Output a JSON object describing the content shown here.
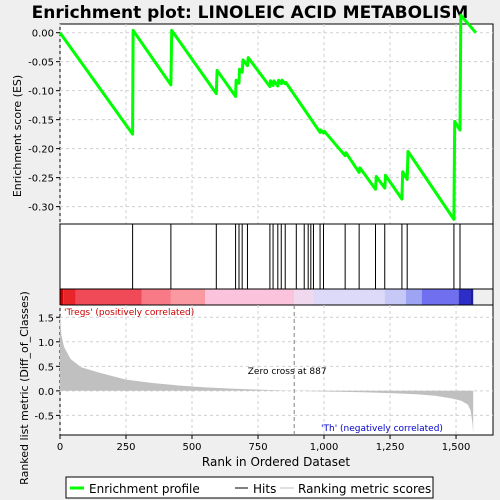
{
  "chart_data": {
    "type": "line",
    "title": "Enrichment plot: LINOLEIC ACID METABOLISM",
    "x_label": "Rank in Ordered Dataset",
    "x_range": [
      0,
      1640
    ],
    "x_ticks": [
      0,
      250,
      500,
      750,
      1000,
      1250,
      1500
    ],
    "x_tick_labels": [
      "0",
      "250",
      "500",
      "750",
      "1,000",
      "1,250",
      "1,500"
    ],
    "es_panel": {
      "y_label": "Enrichment score (ES)",
      "y_range": [
        -0.33,
        0.015
      ],
      "y_ticks": [
        0.0,
        -0.05,
        -0.1,
        -0.15,
        -0.2,
        -0.25,
        -0.3
      ],
      "y_tick_labels": [
        "0.00",
        "-0.05",
        "-0.10",
        "-0.15",
        "-0.20",
        "-0.25",
        "-0.30"
      ],
      "series_name": "Enrichment profile",
      "color": "#00ff00",
      "points": [
        [
          0,
          0.0
        ],
        [
          275,
          -0.175
        ],
        [
          277,
          0.004
        ],
        [
          420,
          -0.09
        ],
        [
          423,
          0.004
        ],
        [
          592,
          -0.105
        ],
        [
          595,
          -0.065
        ],
        [
          665,
          -0.11
        ],
        [
          667,
          -0.082
        ],
        [
          678,
          -0.087
        ],
        [
          680,
          -0.063
        ],
        [
          690,
          -0.068
        ],
        [
          693,
          -0.047
        ],
        [
          710,
          -0.057
        ],
        [
          713,
          -0.043
        ],
        [
          795,
          -0.093
        ],
        [
          797,
          -0.083
        ],
        [
          807,
          -0.091
        ],
        [
          810,
          -0.083
        ],
        [
          825,
          -0.092
        ],
        [
          828,
          -0.082
        ],
        [
          838,
          -0.088
        ],
        [
          841,
          -0.082
        ],
        [
          853,
          -0.088
        ],
        [
          856,
          -0.086
        ],
        [
          985,
          -0.172
        ],
        [
          988,
          -0.168
        ],
        [
          998,
          -0.173
        ],
        [
          1001,
          -0.17
        ],
        [
          1080,
          -0.212
        ],
        [
          1083,
          -0.207
        ],
        [
          1133,
          -0.241
        ],
        [
          1136,
          -0.233
        ],
        [
          1195,
          -0.27
        ],
        [
          1198,
          -0.248
        ],
        [
          1230,
          -0.268
        ],
        [
          1233,
          -0.246
        ],
        [
          1295,
          -0.287
        ],
        [
          1298,
          -0.24
        ],
        [
          1315,
          -0.253
        ],
        [
          1318,
          -0.205
        ],
        [
          1492,
          -0.322
        ],
        [
          1495,
          -0.153
        ],
        [
          1515,
          -0.168
        ],
        [
          1518,
          0.03
        ],
        [
          1575,
          0.0
        ]
      ]
    },
    "hits": [
      275,
      420,
      592,
      665,
      678,
      690,
      710,
      795,
      807,
      825,
      838,
      853,
      895,
      925,
      940,
      950,
      960,
      985,
      998,
      1080,
      1133,
      1195,
      1230,
      1295,
      1315,
      1492,
      1515
    ],
    "rank_metric_panel": {
      "y_label": "Ranked list metric (Diff_of_Classes)",
      "y_range": [
        -0.9,
        1.75
      ],
      "y_ticks": [
        1.5,
        1.0,
        0.5,
        0.0,
        -0.5
      ],
      "y_tick_labels": [
        "1.5",
        "1.0",
        "0.5",
        "0.0",
        "-0.5"
      ],
      "series_name": "Ranking metric scores",
      "color": "#c0c0c0",
      "profile": [
        [
          0,
          1.55
        ],
        [
          5,
          1.15
        ],
        [
          15,
          0.9
        ],
        [
          40,
          0.65
        ],
        [
          80,
          0.48
        ],
        [
          150,
          0.37
        ],
        [
          250,
          0.23
        ],
        [
          350,
          0.16
        ],
        [
          450,
          0.11
        ],
        [
          550,
          0.07
        ],
        [
          650,
          0.045
        ],
        [
          750,
          0.025
        ],
        [
          850,
          0.008
        ],
        [
          887,
          0.0
        ],
        [
          950,
          -0.01
        ],
        [
          1050,
          -0.02
        ],
        [
          1150,
          -0.03
        ],
        [
          1250,
          -0.045
        ],
        [
          1350,
          -0.07
        ],
        [
          1420,
          -0.1
        ],
        [
          1480,
          -0.15
        ],
        [
          1520,
          -0.2
        ],
        [
          1545,
          -0.28
        ],
        [
          1555,
          -0.4
        ],
        [
          1562,
          -0.65
        ],
        [
          1565,
          -0.85
        ]
      ],
      "zero_cross": 887,
      "zero_cross_label": "Zero cross at 887",
      "pos_label": "'Tregs' (positively correlated)",
      "neg_label": "'Th' (negatively correlated)"
    },
    "gradient_bar": {
      "segments": [
        {
          "from": 0,
          "to": 12,
          "color": "#cc0000"
        },
        {
          "from": 12,
          "to": 60,
          "color": "#e8262a"
        },
        {
          "from": 60,
          "to": 310,
          "color": "#f04a58"
        },
        {
          "from": 310,
          "to": 420,
          "color": "#f77a86"
        },
        {
          "from": 420,
          "to": 550,
          "color": "#fb99a3"
        },
        {
          "from": 550,
          "to": 887,
          "color": "#fbc3dc"
        },
        {
          "from": 887,
          "to": 960,
          "color": "#f0d8ef"
        },
        {
          "from": 960,
          "to": 1230,
          "color": "#dcdaf8"
        },
        {
          "from": 1230,
          "to": 1310,
          "color": "#c6c8f7"
        },
        {
          "from": 1310,
          "to": 1370,
          "color": "#9ea3f2"
        },
        {
          "from": 1370,
          "to": 1510,
          "color": "#6f6ff0"
        },
        {
          "from": 1510,
          "to": 1555,
          "color": "#2d2dc8"
        },
        {
          "from": 1555,
          "to": 1565,
          "color": "#1c1c9e"
        }
      ]
    },
    "legend": [
      {
        "label": "Enrichment profile",
        "color": "#00ff00"
      },
      {
        "label": "Hits",
        "color": "#000000"
      },
      {
        "label": "Ranking metric scores",
        "color": "#c0c0c0"
      }
    ],
    "legend_position": "bottom"
  }
}
